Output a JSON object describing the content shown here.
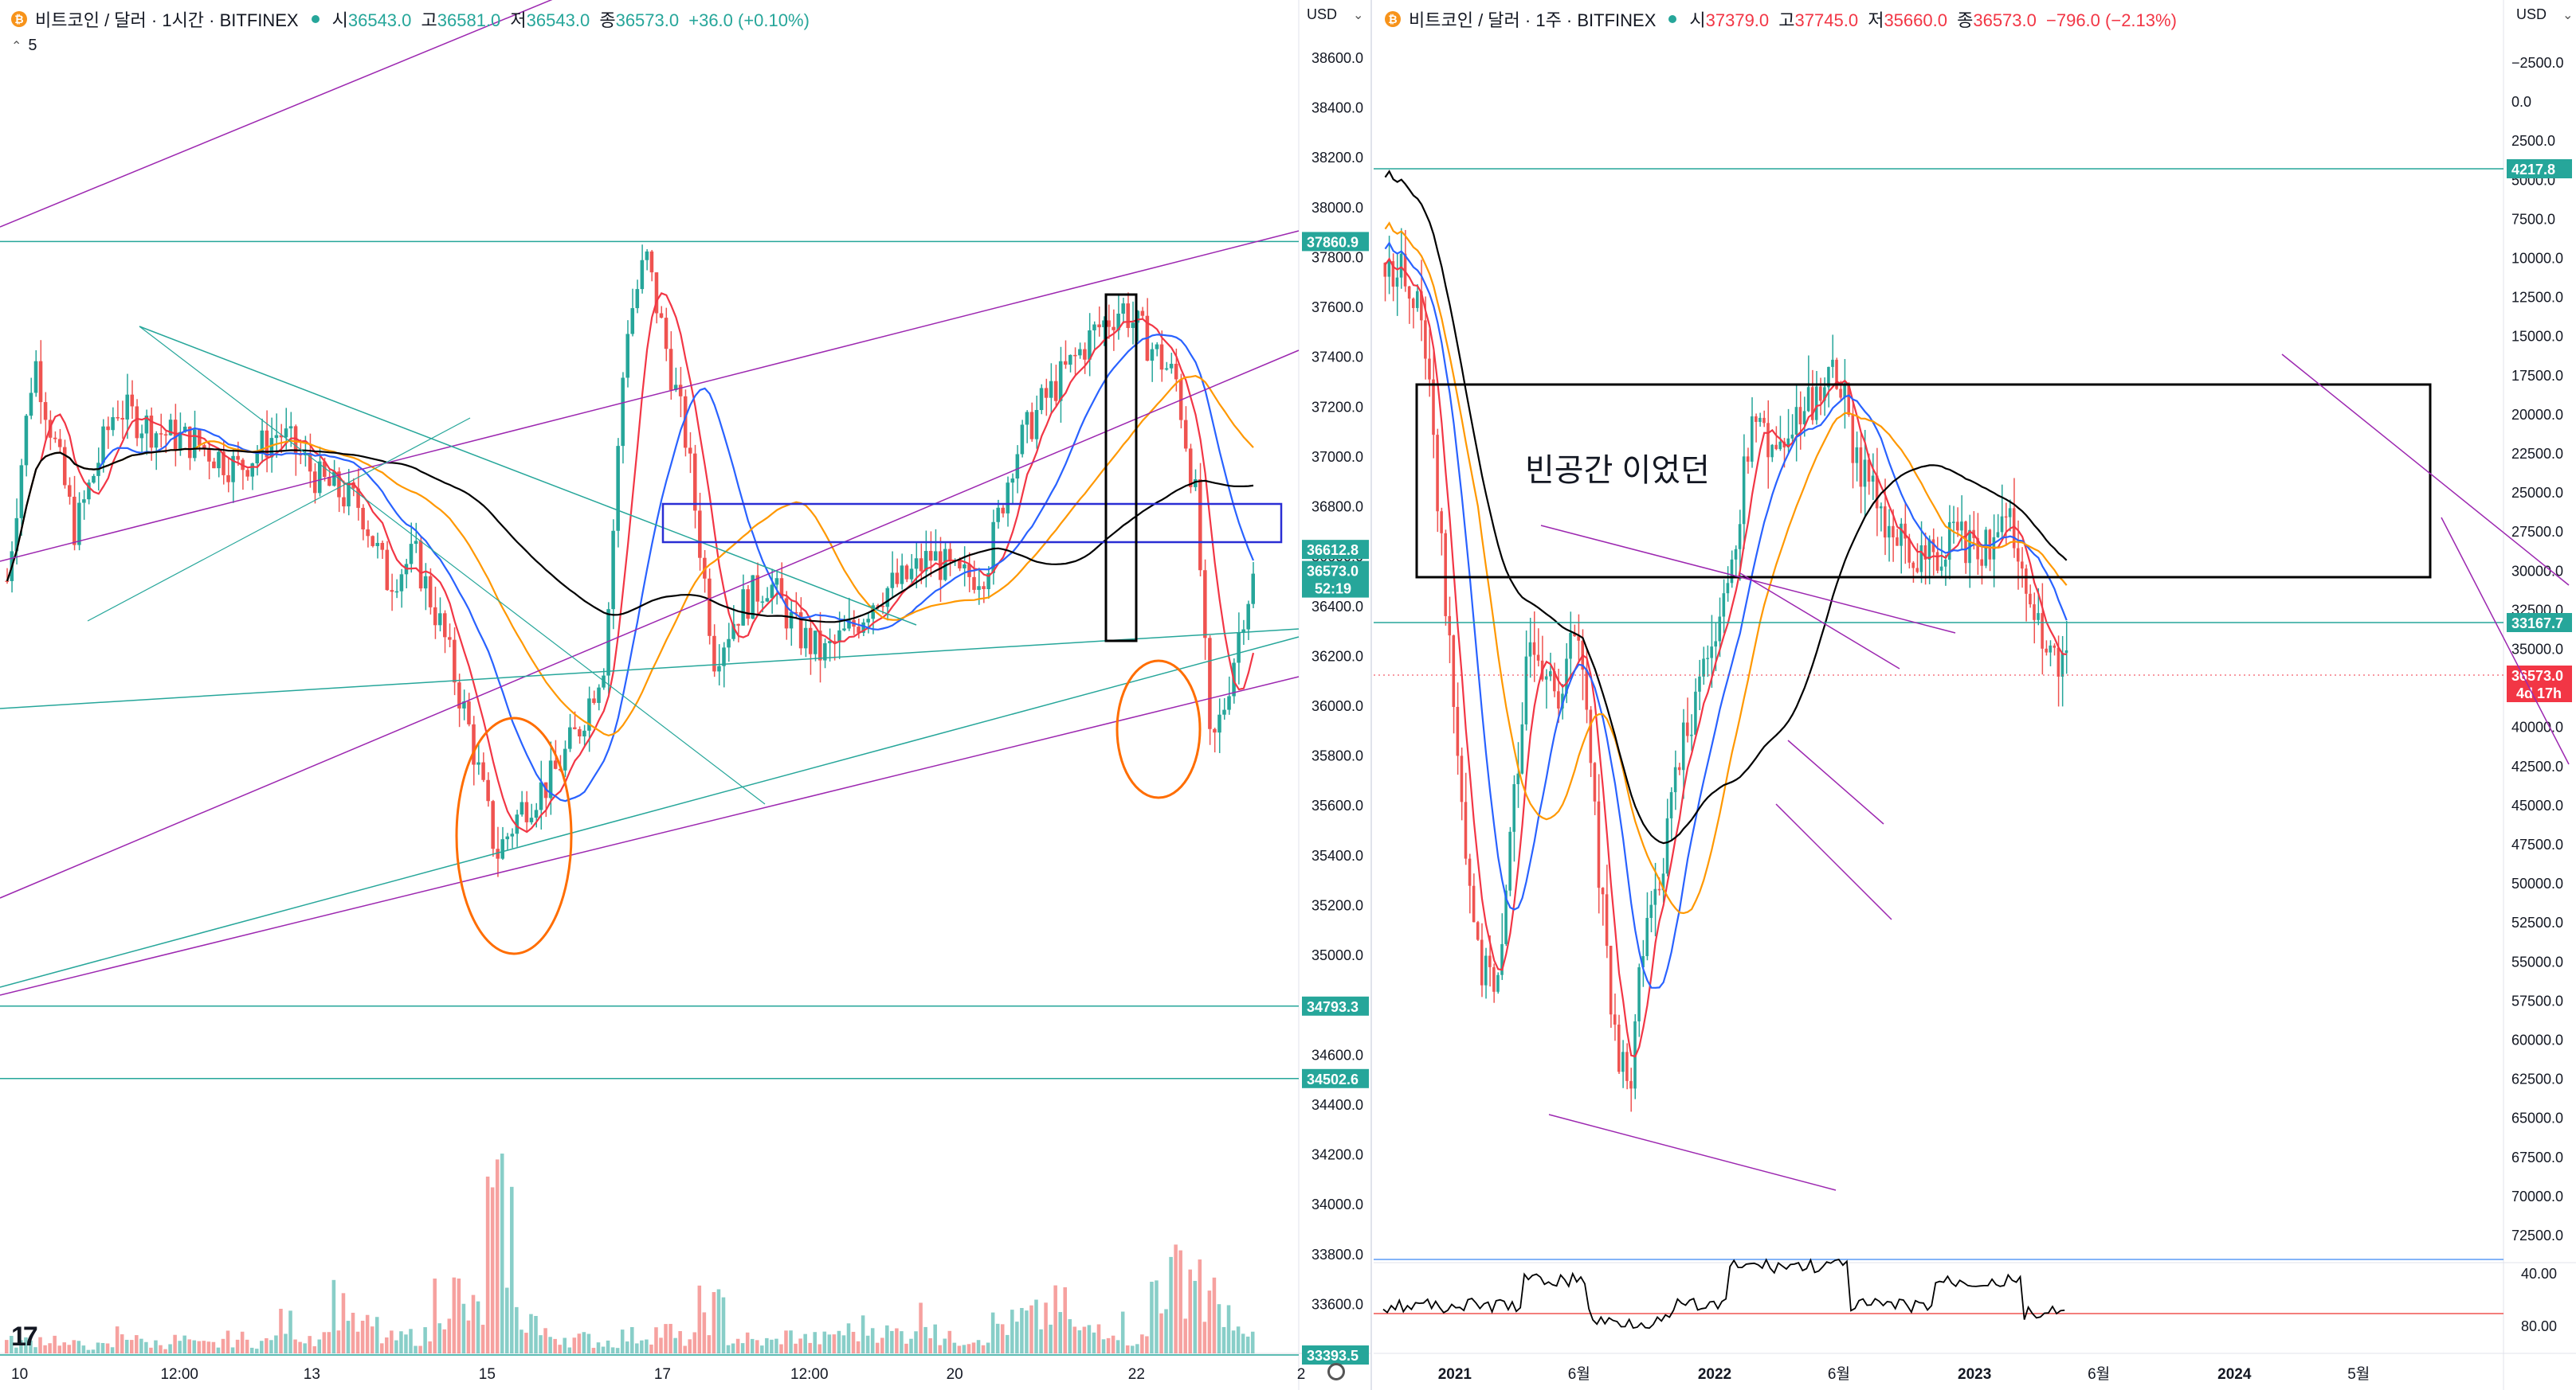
{
  "colors": {
    "up": "#26a69a",
    "down": "#ef5350",
    "ma_red": "#f23645",
    "ma_blue": "#2962ff",
    "ma_orange": "#ff9800",
    "ma_black": "#000000",
    "trend_purple": "#9c27b0",
    "trend_teal": "#26a69a",
    "circle": "#ff6d00",
    "box_blue": "#2a2ed4"
  },
  "left": {
    "legend": {
      "symbol": "비트코인 / 달러 · 1시간 · BITFINEX",
      "o_label": "시",
      "o": "36543.0",
      "h_label": "고",
      "h": "36581.0",
      "l_label": "저",
      "l": "36543.0",
      "c_label": "종",
      "c": "36573.0",
      "change": "+36.0 (+0.10%)"
    },
    "indicator_count": "5",
    "currency": "USD",
    "settings_icon": "gear-icon"
  },
  "right": {
    "legend": {
      "symbol": "비트코인 / 달러 · 1주 · BITFINEX",
      "o_label": "시",
      "o": "37379.0",
      "h_label": "고",
      "h": "37745.0",
      "l_label": "저",
      "l": "35660.0",
      "c_label": "종",
      "c": "36573.0",
      "change": "−796.0 (−2.13%)"
    },
    "currency": "USD",
    "annotation": "빈공간 이었던"
  },
  "chart_data": [
    {
      "type": "candlestick",
      "symbol": "BTCUSD",
      "timeframe": "1시간",
      "y_scale": "linear",
      "ylim": [
        33300,
        38750
      ],
      "y_ticks": [
        38600,
        38400,
        38200,
        38000,
        37800,
        37600,
        37400,
        37200,
        37000,
        36800,
        36600,
        36400,
        36200,
        36000,
        35800,
        35600,
        35400,
        35200,
        35000,
        34800,
        34600,
        34400,
        34200,
        34000,
        33800,
        33600,
        33400
      ],
      "y_tick_labels": [
        "38600.0",
        "38400.0",
        "38200.0",
        "38000.0",
        "37800.0",
        "37600.0",
        "37400.0",
        "37200.0",
        "37000.0",
        "36800.0",
        "36600.0",
        "36400.0",
        "36200.0",
        "36000.0",
        "35800.0",
        "35600.0",
        "35400.0",
        "35200.0",
        "35000.0",
        "34800.0",
        "34600.0",
        "34400.0",
        "34200.0",
        "34000.0",
        "33800.0",
        "33600.0",
        "33400.0"
      ],
      "x_tick_labels": [
        "10",
        "12:00",
        "13",
        "15",
        "17",
        "12:00",
        "20",
        "22",
        "2"
      ],
      "x_ticks_pos": [
        0.0,
        0.115,
        0.225,
        0.36,
        0.495,
        0.6,
        0.72,
        0.86,
        0.99
      ],
      "horizontal_levels": [
        {
          "value": 37860.9,
          "label": "37860.9"
        },
        {
          "value": 34793.3,
          "label": "34793.3"
        },
        {
          "value": 34502.6,
          "label": "34502.6"
        },
        {
          "value": 33393.5,
          "label": "33393.5"
        }
      ],
      "price_tags": [
        {
          "value": 36612.8,
          "label": "36612.8",
          "color": "#26a69a"
        },
        {
          "value": 36573.0,
          "label": "36573.0",
          "sub": "52:19",
          "color": "#26a69a"
        }
      ],
      "close_path": [
        [
          0.0,
          36500
        ],
        [
          0.02,
          37400
        ],
        [
          0.05,
          36700
        ],
        [
          0.08,
          37200
        ],
        [
          0.11,
          37100
        ],
        [
          0.14,
          37050
        ],
        [
          0.17,
          36950
        ],
        [
          0.2,
          37100
        ],
        [
          0.23,
          36900
        ],
        [
          0.26,
          36800
        ],
        [
          0.28,
          36500
        ],
        [
          0.3,
          36600
        ],
        [
          0.32,
          36300
        ],
        [
          0.34,
          35900
        ],
        [
          0.36,
          35400
        ],
        [
          0.38,
          35600
        ],
        [
          0.4,
          35700
        ],
        [
          0.42,
          35900
        ],
        [
          0.44,
          36200
        ],
        [
          0.455,
          37500
        ],
        [
          0.47,
          37800
        ],
        [
          0.48,
          37550
        ],
        [
          0.49,
          37300
        ],
        [
          0.5,
          37050
        ],
        [
          0.52,
          36200
        ],
        [
          0.54,
          36400
        ],
        [
          0.56,
          36500
        ],
        [
          0.58,
          36300
        ],
        [
          0.6,
          36200
        ],
        [
          0.62,
          36300
        ],
        [
          0.64,
          36450
        ],
        [
          0.66,
          36500
        ],
        [
          0.68,
          36600
        ],
        [
          0.7,
          36500
        ],
        [
          0.72,
          36550
        ],
        [
          0.74,
          37000
        ],
        [
          0.76,
          37200
        ],
        [
          0.78,
          37350
        ],
        [
          0.8,
          37500
        ],
        [
          0.82,
          37600
        ],
        [
          0.84,
          37450
        ],
        [
          0.86,
          37300
        ],
        [
          0.875,
          36800
        ],
        [
          0.885,
          35800
        ],
        [
          0.895,
          36000
        ],
        [
          0.91,
          36400
        ],
        [
          0.92,
          36560
        ]
      ],
      "volume_path": [
        0.08,
        0.1,
        0.06,
        0.05,
        0.14,
        0.07,
        0.09,
        0.06,
        0.1,
        0.08,
        0.2,
        0.12,
        0.35,
        0.18,
        0.1,
        0.12,
        0.4,
        0.28,
        0.9,
        0.25,
        0.12,
        0.1,
        0.08,
        0.12,
        0.15,
        0.1,
        0.3,
        0.1,
        0.08,
        0.12,
        0.1,
        0.15,
        0.18,
        0.14,
        0.25,
        0.1,
        0.12,
        0.2,
        0.24,
        0.3,
        0.15,
        0.2,
        0.1,
        0.5,
        0.6,
        0.35,
        0.12
      ]
    },
    {
      "type": "candlestick",
      "symbol": "BTCUSD",
      "timeframe": "1주",
      "y_scale": "custom",
      "y_tick_labels": [
        "−2500.0",
        "0.0",
        "2500.0",
        "5000.0",
        "7500.0",
        "10000.0",
        "12500.0",
        "15000.0",
        "17500.0",
        "20000.0",
        "22500.0",
        "25000.0",
        "27500.0",
        "30000.0",
        "32500.0",
        "35000.0",
        "37500.0",
        "40000.0",
        "42500.0",
        "45000.0",
        "47500.0",
        "50000.0",
        "52500.0",
        "55000.0",
        "57500.0",
        "60000.0",
        "62500.0",
        "65000.0",
        "67500.0",
        "70000.0",
        "72500.0"
      ],
      "x_tick_labels": [
        "2021",
        "6월",
        "2022",
        "6월",
        "2023",
        "6월",
        "2024",
        "5월"
      ],
      "x_ticks_pos": [
        0.04,
        0.155,
        0.27,
        0.385,
        0.5,
        0.615,
        0.73,
        0.845
      ],
      "horizontal_levels": [
        {
          "label": "4217.8",
          "color": "#26a69a"
        },
        {
          "label": "33167.7",
          "color": "#26a69a"
        }
      ],
      "price_tags": [
        {
          "label": "36573.0",
          "sub": "4d 17h",
          "color": "#f23645"
        }
      ],
      "osc_ticks": [
        "40.00",
        "80.00"
      ]
    }
  ]
}
